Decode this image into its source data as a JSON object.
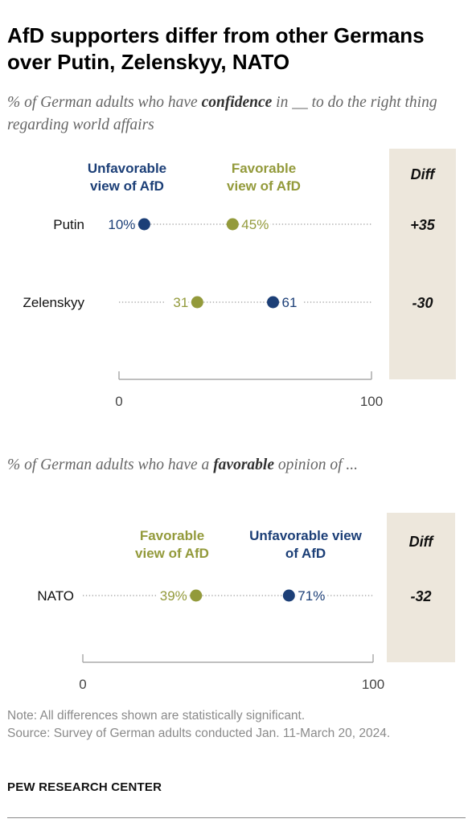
{
  "title": "AfD supporters differ from other Germans over Putin, Zelenskyy, NATO",
  "colors": {
    "unfavorable": "#1c3f77",
    "favorable": "#939a3b",
    "diff_bg": "#ede7dc",
    "dots": "#9a9a9a",
    "axis": "#aaaaaa"
  },
  "chart_data": [
    {
      "type": "dot",
      "subtitle": {
        "before": "% of German adults who have ",
        "emphasis": "confidence",
        "after": " in __ to do the right thing regarding world affairs"
      },
      "legend": {
        "unfavorable": [
          "Unfavorable",
          "view of AfD"
        ],
        "favorable": [
          "Favorable",
          "view of AfD"
        ]
      },
      "diff_header": "Diff",
      "xlim": [
        0,
        100
      ],
      "ticks": [
        "0",
        "100"
      ],
      "rows": [
        {
          "label": "Putin",
          "unfavorable": 10,
          "favorable": 45,
          "unfavorable_label": "10%",
          "favorable_label": "45%",
          "diff": "+35"
        },
        {
          "label": "Zelenskyy",
          "unfavorable": 61,
          "favorable": 31,
          "unfavorable_label": "61",
          "favorable_label": "31",
          "diff": "-30"
        }
      ]
    },
    {
      "type": "dot",
      "subtitle": {
        "before": "% of German adults who have a ",
        "emphasis": "favorable",
        "after": " opinion of ..."
      },
      "legend": {
        "favorable": [
          "Favorable",
          "view of AfD"
        ],
        "unfavorable": [
          "Unfavorable view",
          "of AfD"
        ]
      },
      "diff_header": "Diff",
      "xlim": [
        0,
        100
      ],
      "ticks": [
        "0",
        "100"
      ],
      "rows": [
        {
          "label": "NATO",
          "unfavorable": 71,
          "favorable": 39,
          "unfavorable_label": "71%",
          "favorable_label": "39%",
          "diff": "-32"
        }
      ]
    }
  ],
  "note": "Note: All differences shown are statistically significant.",
  "source": "Source: Survey of German adults conducted Jan. 11-March 20, 2024.",
  "brand": "PEW RESEARCH CENTER"
}
